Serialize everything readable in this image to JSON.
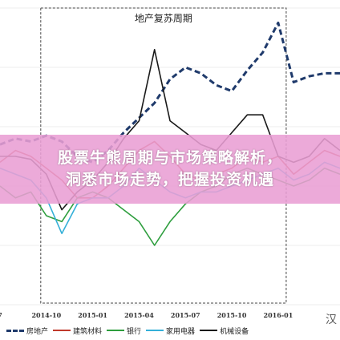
{
  "banner": {
    "line1": "股票牛熊周期与市场策略解析，",
    "line2": "洞悉市场走势，把握投资机遇"
  },
  "chart_data": {
    "type": "line",
    "annotation": "地产复苏周期",
    "annotation_range": [
      "2014-10",
      "2016-01"
    ],
    "categories": [
      "2014-07",
      "2014-08",
      "2014-09",
      "2014-10",
      "2014-11",
      "2014-12",
      "2015-01",
      "2015-02",
      "2015-03",
      "2015-04",
      "2015-05",
      "2015-06",
      "2015-07",
      "2015-08",
      "2015-09",
      "2015-10",
      "2015-11",
      "2015-12",
      "2016-01",
      "2016-02",
      "2016-03",
      "2016-04",
      "2016-05"
    ],
    "x_tick_labels": [
      {
        "index": 0,
        "label": "7"
      },
      {
        "index": 3,
        "label": "2014-10"
      },
      {
        "index": 6,
        "label": "2015-01"
      },
      {
        "index": 9,
        "label": "2015-04"
      },
      {
        "index": 12,
        "label": "2015-07"
      },
      {
        "index": 15,
        "label": "2015-10"
      },
      {
        "index": 18,
        "label": "2016-01"
      }
    ],
    "ylim": [
      0,
      100
    ],
    "series": [
      {
        "name": "房地产",
        "color": "#1f3a6b",
        "dashed": true,
        "values": [
          54,
          56,
          55,
          57,
          55,
          50,
          48,
          52,
          58,
          63,
          68,
          76,
          80,
          78,
          74,
          72,
          79,
          85,
          95,
          75,
          77,
          78,
          78
        ]
      },
      {
        "name": "建筑材料",
        "color": "#c0392b",
        "dashed": false,
        "values": [
          48,
          52,
          50,
          46,
          42,
          36,
          36,
          40,
          46,
          52,
          55,
          50,
          44,
          42,
          44,
          46,
          50,
          48,
          50,
          44,
          48,
          52,
          50
        ]
      },
      {
        "name": "银行",
        "color": "#2e9e3e",
        "dashed": false,
        "values": [
          40,
          36,
          38,
          30,
          28,
          36,
          38,
          36,
          32,
          28,
          20,
          28,
          34,
          38,
          40,
          44,
          46,
          44,
          42,
          40,
          42,
          46,
          44
        ]
      },
      {
        "name": "家用电器",
        "color": "#35b0d8",
        "dashed": false,
        "values": [
          46,
          44,
          42,
          36,
          24,
          34,
          36,
          36,
          40,
          46,
          42,
          38,
          36,
          38,
          38,
          40,
          42,
          44,
          46,
          42,
          44,
          48,
          46
        ]
      },
      {
        "name": "机械设备",
        "color": "#1a1a1a",
        "dashed": false,
        "values": [
          50,
          50,
          49,
          44,
          32,
          38,
          42,
          48,
          56,
          62,
          86,
          62,
          58,
          54,
          52,
          58,
          64,
          64,
          50,
          48,
          50,
          56,
          52
        ]
      }
    ]
  },
  "watermark": "汉"
}
